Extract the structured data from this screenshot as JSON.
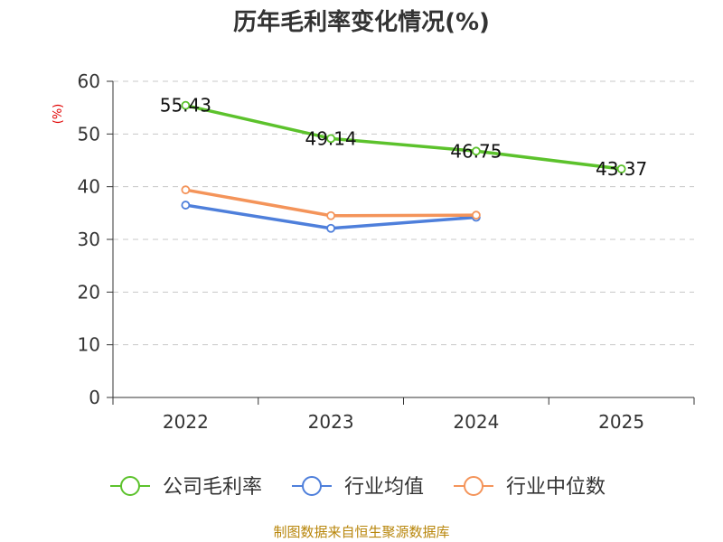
{
  "chart_data": {
    "type": "line",
    "title": "历年毛利率变化情况(%)",
    "ylabel": "(%)",
    "categories": [
      "2022",
      "2023",
      "2024",
      "2025"
    ],
    "ylim": [
      0,
      60
    ],
    "yticks": [
      0,
      10,
      20,
      30,
      40,
      50,
      60
    ],
    "grid": true,
    "legend_position": "bottom",
    "series": [
      {
        "name": "公司毛利率",
        "color": "#5cc22c",
        "values": [
          55.43,
          49.14,
          46.75,
          43.37
        ],
        "labels": [
          "55.43",
          "49.14",
          "46.75",
          "43.37"
        ]
      },
      {
        "name": "行业均值",
        "color": "#4e7fdb",
        "values": [
          36.5,
          32.1,
          34.2,
          null
        ]
      },
      {
        "name": "行业中位数",
        "color": "#f4945a",
        "values": [
          39.4,
          34.5,
          34.6,
          null
        ]
      }
    ]
  },
  "footer": {
    "source": "制图数据来自恒生聚源数据库"
  }
}
